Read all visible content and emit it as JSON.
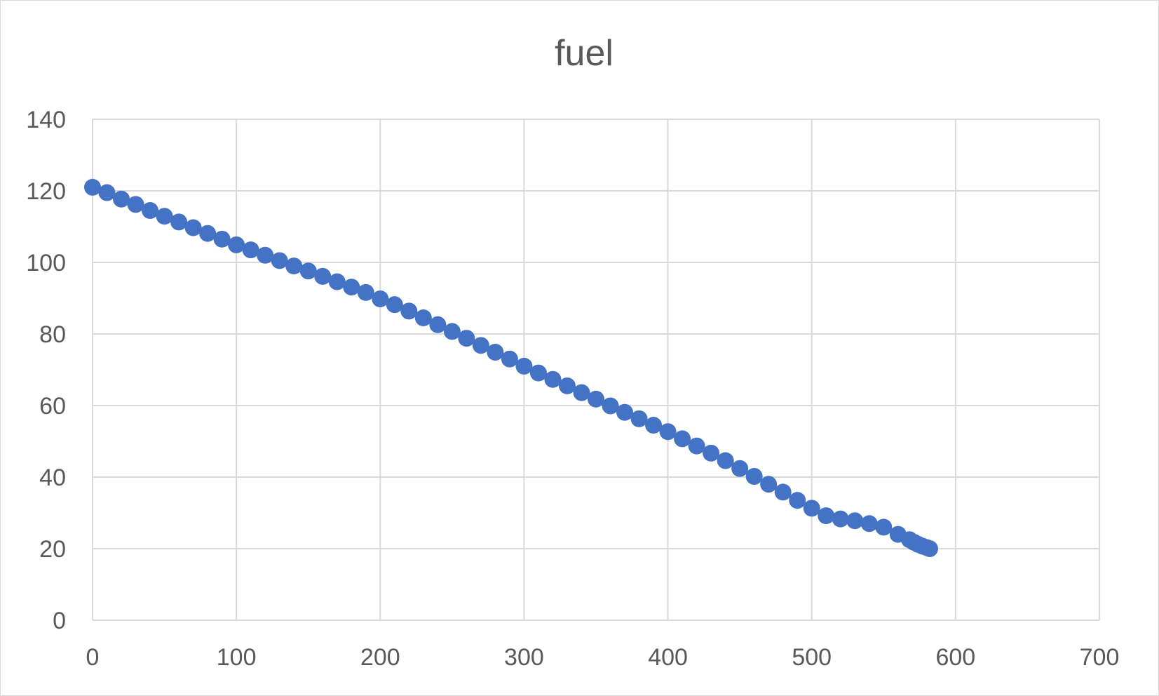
{
  "chart_data": {
    "type": "scatter",
    "title": "fuel",
    "xlabel": "",
    "ylabel": "",
    "xlim": [
      0,
      700
    ],
    "ylim": [
      0,
      140
    ],
    "x_ticks": [
      0,
      100,
      200,
      300,
      400,
      500,
      600,
      700
    ],
    "y_ticks": [
      0,
      20,
      40,
      60,
      80,
      100,
      120,
      140
    ],
    "grid": true,
    "legend": "none",
    "marker_color": "#4472C4",
    "gridline_color": "#d9d9d9",
    "series": [
      {
        "x": [
          0,
          10,
          20,
          30,
          40,
          50,
          60,
          70,
          80,
          90,
          100,
          110,
          120,
          130,
          140,
          150,
          160,
          170,
          180,
          190,
          200,
          210,
          220,
          230,
          240,
          250,
          260,
          270,
          280,
          290,
          300,
          310,
          320,
          330,
          340,
          350,
          360,
          370,
          380,
          390,
          400,
          410,
          420,
          430,
          440,
          450,
          460,
          470,
          480,
          490,
          500,
          510,
          520,
          530,
          540,
          550,
          560,
          568,
          571,
          574,
          577,
          580,
          582
        ],
        "y": [
          121,
          119.5,
          117.7,
          116.2,
          114.5,
          112.9,
          111.3,
          109.7,
          108.1,
          106.5,
          104.9,
          103.5,
          102,
          100.5,
          99,
          97.6,
          96.1,
          94.6,
          93.1,
          91.6,
          89.8,
          88.2,
          86.4,
          84.5,
          82.6,
          80.7,
          78.8,
          76.8,
          74.9,
          73,
          71,
          69.1,
          67.3,
          65.5,
          63.6,
          61.8,
          59.9,
          58.1,
          56.3,
          54.5,
          52.7,
          50.7,
          48.7,
          46.7,
          44.6,
          42.4,
          40.2,
          38,
          35.8,
          33.5,
          31.3,
          29.2,
          28.3,
          27.8,
          27,
          26,
          24,
          22.5,
          21.8,
          21.2,
          20.7,
          20.3,
          20
        ]
      }
    ]
  }
}
